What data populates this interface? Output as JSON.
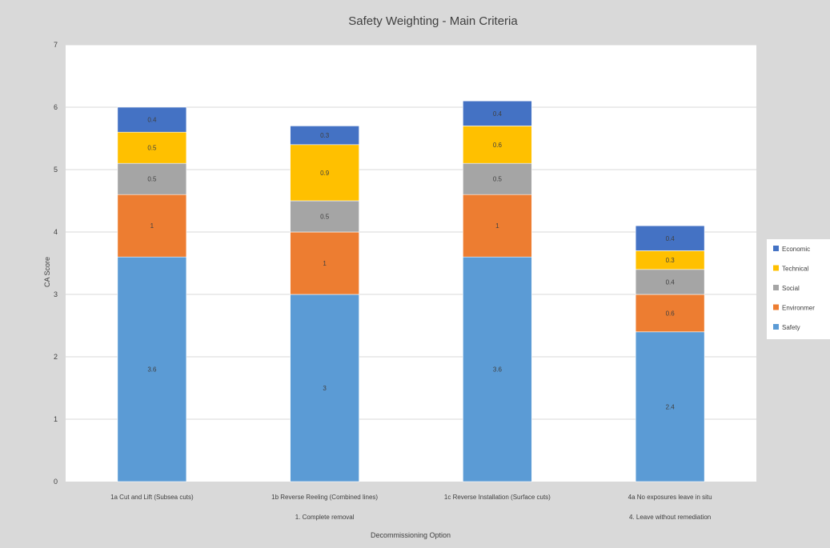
{
  "chart_data": {
    "type": "bar",
    "stacked": true,
    "title": "Safety Weighting - Main Criteria",
    "ylabel": "CA Score",
    "xlabel": "Decommissioning Option",
    "ylim": [
      0,
      7
    ],
    "yticks": [
      0,
      1,
      2,
      3,
      4,
      5,
      6,
      7
    ],
    "grid": true,
    "legend_position": "right",
    "categories": [
      "1a Cut and Lift (Subsea cuts)",
      "1b Reverse Reeling (Combined lines)",
      "1c Reverse Installation (Surface cuts)",
      "4a No exposures leave in situ"
    ],
    "groups": [
      {
        "label": "1. Complete removal",
        "span": [
          0,
          2
        ]
      },
      {
        "label": "4. Leave without remediation",
        "span": [
          3,
          3
        ]
      }
    ],
    "series": [
      {
        "name": "Safety",
        "color": "#5b9bd5",
        "values": [
          3.6,
          3,
          3.6,
          2.4
        ],
        "labels": [
          "3.6",
          "3",
          "3.6",
          "2.4"
        ]
      },
      {
        "name": "Environment",
        "color": "#ed7d31",
        "values": [
          1,
          1,
          1,
          0.6
        ],
        "labels": [
          "1",
          "1",
          "1",
          "0.6"
        ]
      },
      {
        "name": "Social",
        "color": "#a5a5a5",
        "values": [
          0.5,
          0.5,
          0.5,
          0.4
        ],
        "labels": [
          "0.5",
          "0.5",
          "0.5",
          "0.4"
        ]
      },
      {
        "name": "Technical",
        "color": "#ffc000",
        "values": [
          0.5,
          0.9,
          0.6,
          0.3
        ],
        "labels": [
          "0.5",
          "0.9",
          "0.6",
          "0.3"
        ]
      },
      {
        "name": "Economic",
        "color": "#4472c4",
        "values": [
          0.4,
          0.3,
          0.4,
          0.4
        ],
        "labels": [
          "0.4",
          "0.3",
          "0.4",
          "0.4"
        ]
      }
    ],
    "legend_entries": [
      "Economic",
      "Technical",
      "Social",
      "Environment",
      "Safety"
    ],
    "legend_visible_text": [
      "Economic",
      "Technical",
      "Social",
      "Environmer",
      "Safety"
    ]
  }
}
